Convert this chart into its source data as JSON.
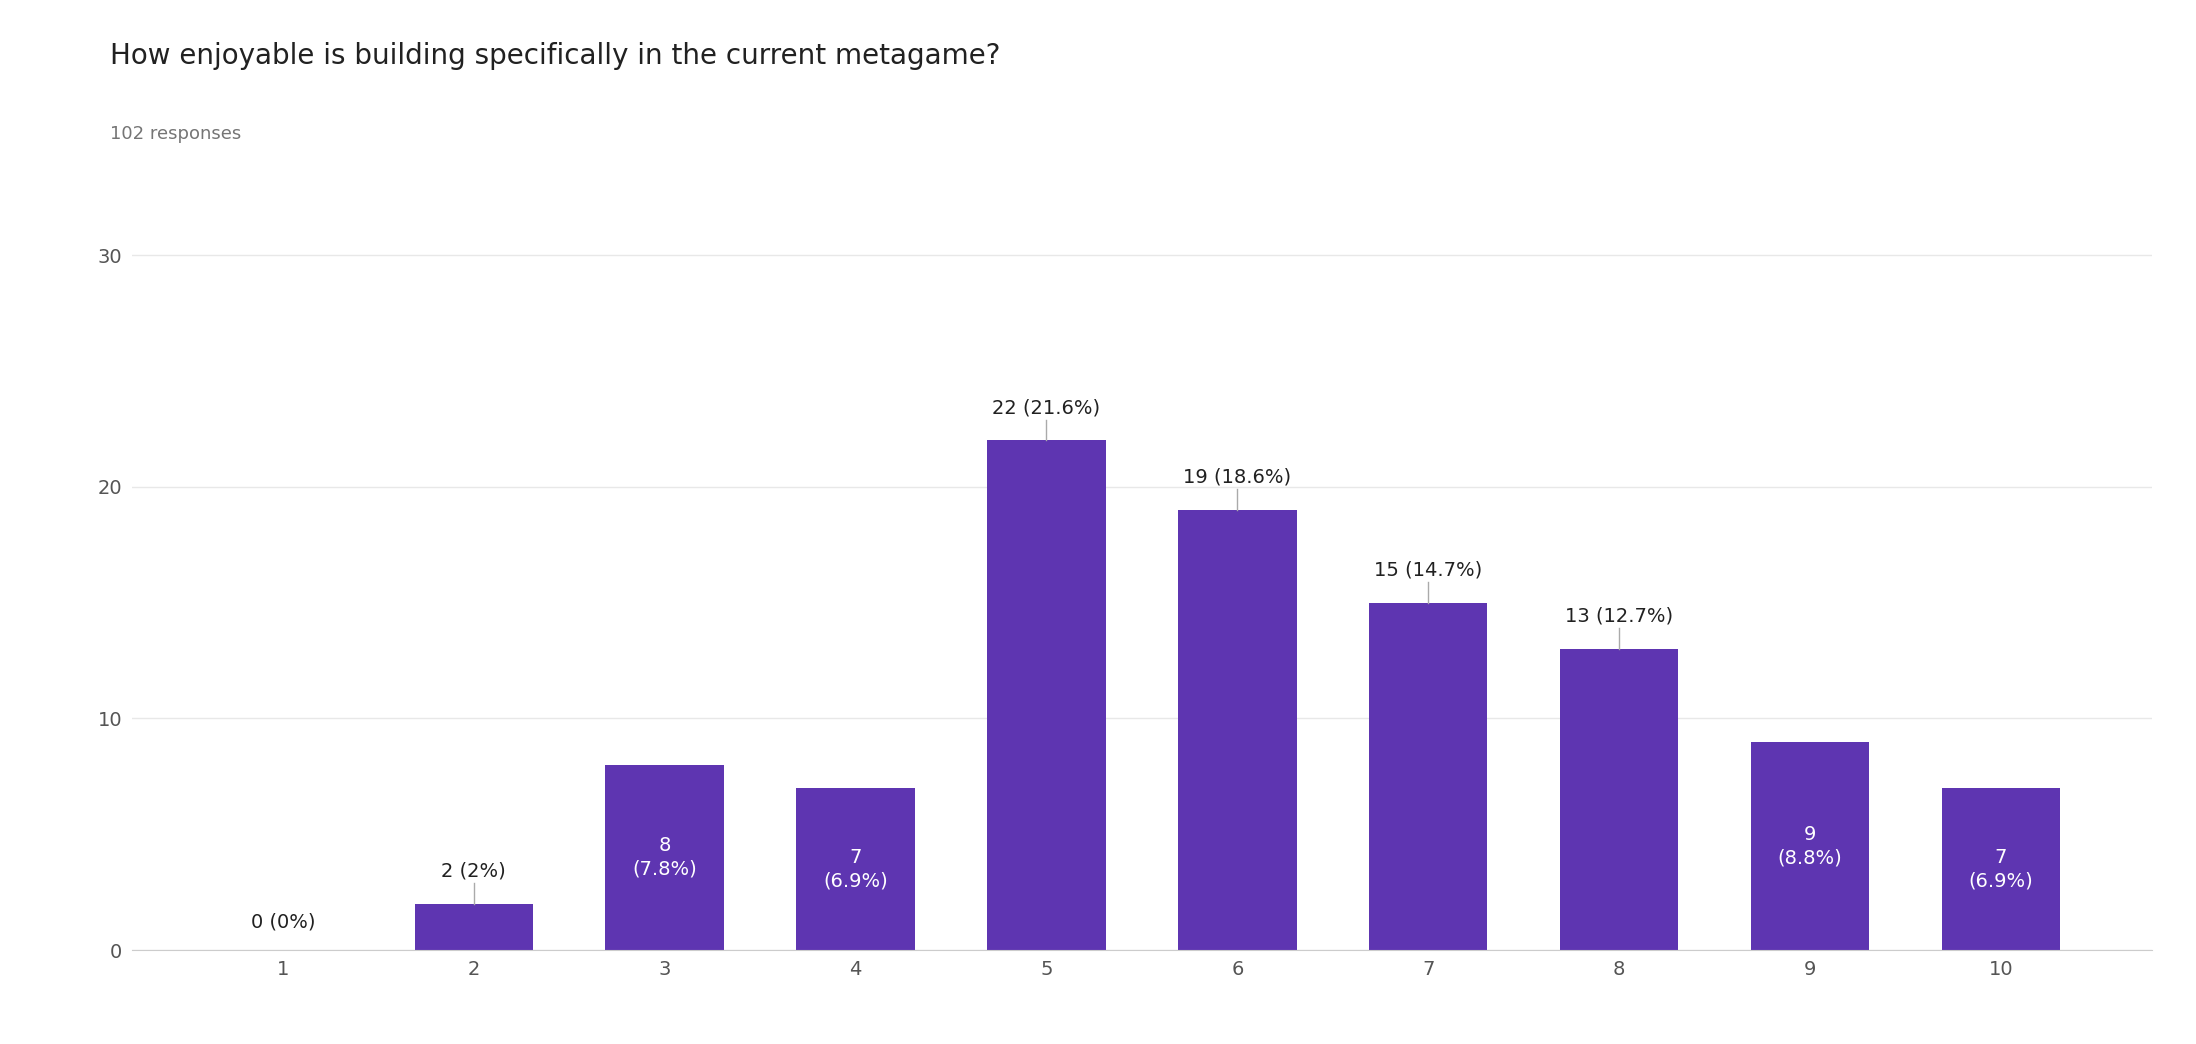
{
  "title": "How enjoyable is building specifically in the current metagame?",
  "subtitle": "102 responses",
  "categories": [
    1,
    2,
    3,
    4,
    5,
    6,
    7,
    8,
    9,
    10
  ],
  "values": [
    0,
    2,
    8,
    7,
    22,
    19,
    15,
    13,
    9,
    7
  ],
  "percentages": [
    "0%",
    "2%",
    "7.8%",
    "6.9%",
    "21.6%",
    "18.6%",
    "14.7%",
    "12.7%",
    "8.8%",
    "6.9%"
  ],
  "bar_color": "#5e35b1",
  "label_inside_color": "#ffffff",
  "label_outside_color": "#212121",
  "background_color": "#ffffff",
  "grid_color": "#e8e8e8",
  "ylim": [
    0,
    32
  ],
  "yticks": [
    0,
    10,
    20,
    30
  ],
  "title_fontsize": 20,
  "subtitle_fontsize": 13,
  "tick_fontsize": 14,
  "label_fontsize_inside": 14,
  "label_fontsize_outside": 14,
  "inside_threshold": 5,
  "above_threshold": 13,
  "connector_color": "#aaaaaa"
}
